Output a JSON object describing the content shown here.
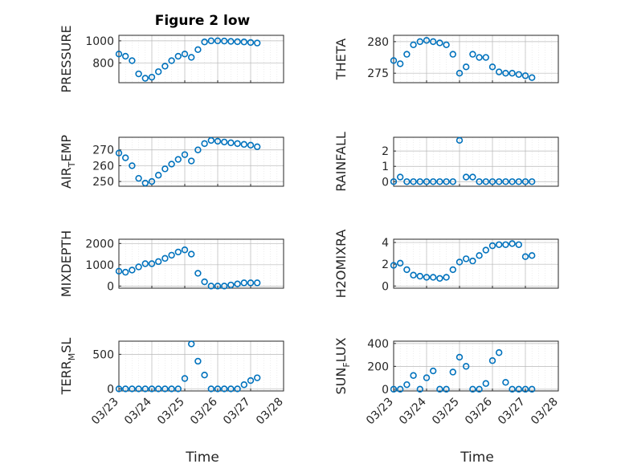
{
  "figure": {
    "title": "Figure 2 low",
    "xlabel": "Time"
  },
  "colors": {
    "marker": "#0072BD",
    "axis": "#262626",
    "grid": "#b8b8b8"
  },
  "x_ticks": [
    "03/23",
    "03/24",
    "03/25",
    "03/26",
    "03/27",
    "03/28"
  ],
  "chart_data": [
    {
      "type": "scatter",
      "ylabel": "PRESSURE",
      "ylim": [
        620,
        1050
      ],
      "yticks": [
        "800",
        "1000"
      ],
      "ytick_values": [
        800,
        1000
      ],
      "x": [
        0,
        0.2,
        0.4,
        0.6,
        0.8,
        1,
        1.2,
        1.4,
        1.6,
        1.8,
        2,
        2.2,
        2.4,
        2.6,
        2.8,
        3,
        3.2,
        3.4,
        3.6,
        3.8,
        4,
        4.2
      ],
      "values": [
        880,
        860,
        820,
        700,
        660,
        670,
        720,
        770,
        820,
        860,
        880,
        850,
        920,
        990,
        1000,
        1000,
        998,
        995,
        992,
        990,
        985,
        980
      ]
    },
    {
      "type": "scatter",
      "ylabel": "THETA",
      "ylim": [
        273.5,
        281
      ],
      "yticks": [
        "275",
        "280"
      ],
      "ytick_values": [
        275,
        280
      ],
      "x": [
        0,
        0.2,
        0.4,
        0.6,
        0.8,
        1,
        1.2,
        1.4,
        1.6,
        1.8,
        2,
        2.2,
        2.4,
        2.6,
        2.8,
        3,
        3.2,
        3.4,
        3.6,
        3.8,
        4,
        4.2
      ],
      "values": [
        277,
        276.5,
        278,
        279.5,
        280,
        280.2,
        280,
        279.8,
        279.5,
        278,
        275,
        276,
        278,
        277.5,
        277.5,
        276,
        275.2,
        275,
        275,
        274.8,
        274.6,
        274.3
      ]
    },
    {
      "type": "scatter",
      "ylabel": "AIRTEMP",
      "ylim": [
        247,
        278
      ],
      "yticks": [
        "250",
        "260",
        "270"
      ],
      "ytick_values": [
        250,
        260,
        270
      ],
      "x": [
        0,
        0.2,
        0.4,
        0.6,
        0.8,
        1,
        1.2,
        1.4,
        1.6,
        1.8,
        2,
        2.2,
        2.4,
        2.6,
        2.8,
        3,
        3.2,
        3.4,
        3.6,
        3.8,
        4,
        4.2
      ],
      "values": [
        268,
        265,
        260,
        252,
        249,
        250,
        254,
        258,
        261,
        264,
        267,
        263,
        270,
        274,
        276,
        275.5,
        275,
        274.5,
        274,
        273.5,
        273,
        272
      ]
    },
    {
      "type": "scatter",
      "ylabel": "RAINFALL",
      "ylim": [
        -0.3,
        2.9
      ],
      "yticks": [
        "0",
        "1",
        "2"
      ],
      "ytick_values": [
        0,
        1,
        2
      ],
      "x": [
        0,
        0.2,
        0.4,
        0.6,
        0.8,
        1,
        1.2,
        1.4,
        1.6,
        1.8,
        2,
        2.2,
        2.4,
        2.6,
        2.8,
        3,
        3.2,
        3.4,
        3.6,
        3.8,
        4,
        4.2
      ],
      "values": [
        0,
        0.3,
        0,
        0,
        0,
        0,
        0,
        0,
        0,
        0,
        2.7,
        0.3,
        0.3,
        0,
        0,
        0,
        0,
        0,
        0,
        0,
        0,
        0
      ]
    },
    {
      "type": "scatter",
      "ylabel": "MIXDEPTH",
      "ylim": [
        -100,
        2200
      ],
      "yticks": [
        "0",
        "1000",
        "2000"
      ],
      "ytick_values": [
        0,
        1000,
        2000
      ],
      "x": [
        0,
        0.2,
        0.4,
        0.6,
        0.8,
        1,
        1.2,
        1.4,
        1.6,
        1.8,
        2,
        2.2,
        2.4,
        2.6,
        2.8,
        3,
        3.2,
        3.4,
        3.6,
        3.8,
        4,
        4.2
      ],
      "values": [
        700,
        650,
        750,
        900,
        1050,
        1050,
        1150,
        1300,
        1450,
        1600,
        1700,
        1500,
        600,
        200,
        0,
        0,
        0,
        50,
        100,
        150,
        150,
        150
      ]
    },
    {
      "type": "scatter",
      "ylabel": "H2OMIXRA",
      "ylim": [
        -0.2,
        4.3
      ],
      "yticks": [
        "0",
        "2",
        "4"
      ],
      "ytick_values": [
        0,
        2,
        4
      ],
      "x": [
        0,
        0.2,
        0.4,
        0.6,
        0.8,
        1,
        1.2,
        1.4,
        1.6,
        1.8,
        2,
        2.2,
        2.4,
        2.6,
        2.8,
        3,
        3.2,
        3.4,
        3.6,
        3.8,
        4,
        4.2
      ],
      "values": [
        1.9,
        2.1,
        1.5,
        1.0,
        0.9,
        0.8,
        0.8,
        0.7,
        0.8,
        1.5,
        2.2,
        2.5,
        2.3,
        2.8,
        3.3,
        3.7,
        3.8,
        3.8,
        3.9,
        3.8,
        2.7,
        2.8
      ]
    },
    {
      "type": "scatter",
      "ylabel": "TERRMSL",
      "ylim": [
        -30,
        690
      ],
      "yticks": [
        "0",
        "500"
      ],
      "ytick_values": [
        0,
        500
      ],
      "x": [
        0,
        0.2,
        0.4,
        0.6,
        0.8,
        1,
        1.2,
        1.4,
        1.6,
        1.8,
        2,
        2.2,
        2.4,
        2.6,
        2.8,
        3,
        3.2,
        3.4,
        3.6,
        3.8,
        4,
        4.2
      ],
      "values": [
        0,
        0,
        0,
        0,
        0,
        0,
        0,
        0,
        0,
        0,
        150,
        650,
        400,
        200,
        0,
        0,
        0,
        0,
        0,
        60,
        120,
        160
      ]
    },
    {
      "type": "scatter",
      "ylabel": "SUNFLUX",
      "ylim": [
        -15,
        420
      ],
      "yticks": [
        "0",
        "200",
        "400"
      ],
      "ytick_values": [
        0,
        200,
        400
      ],
      "x": [
        0,
        0.2,
        0.4,
        0.6,
        0.8,
        1,
        1.2,
        1.4,
        1.6,
        1.8,
        2,
        2.2,
        2.4,
        2.6,
        2.8,
        3,
        3.2,
        3.4,
        3.6,
        3.8,
        4,
        4.2
      ],
      "values": [
        0,
        0,
        40,
        120,
        0,
        100,
        160,
        0,
        0,
        150,
        280,
        200,
        0,
        0,
        50,
        250,
        320,
        60,
        0,
        0,
        0,
        0
      ]
    }
  ]
}
